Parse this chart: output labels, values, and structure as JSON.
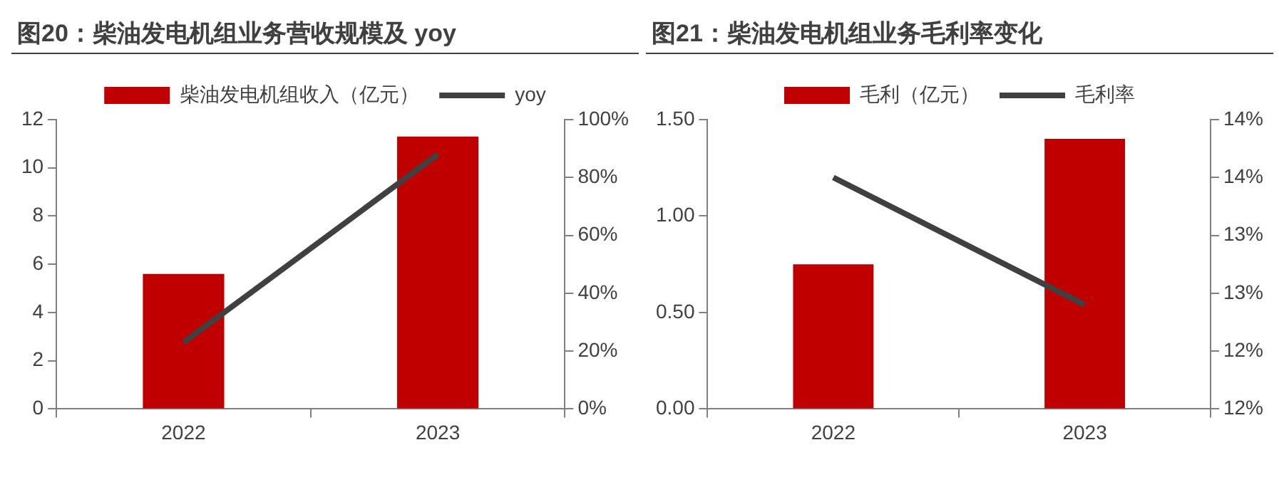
{
  "chart_data": [
    {
      "type": "bar",
      "title": "图20：柴油发电机组业务营收规模及 yoy",
      "categories": [
        "2022",
        "2023"
      ],
      "legend": "top",
      "grid": false,
      "series": [
        {
          "name": "柴油发电机组收入（亿元）",
          "color": "#c00000",
          "values": [
            5.6,
            11.3
          ]
        },
        {
          "name": "yoy",
          "type": "line",
          "axis": "y2",
          "color": "#404040",
          "values": [
            23,
            88
          ]
        }
      ],
      "ylim": [
        0,
        12
      ],
      "yticks": [
        0,
        2,
        4,
        6,
        8,
        10,
        12
      ],
      "y2lim": [
        0,
        100
      ],
      "y2ticks": [
        {
          "value": 0,
          "label": "0%"
        },
        {
          "value": 20,
          "label": "20%"
        },
        {
          "value": 40,
          "label": "40%"
        },
        {
          "value": 60,
          "label": "60%"
        },
        {
          "value": 80,
          "label": "80%"
        },
        {
          "value": 100,
          "label": "100%"
        }
      ]
    },
    {
      "type": "bar",
      "title": "图21：柴油发电机组业务毛利率变化",
      "categories": [
        "2022",
        "2023"
      ],
      "legend": "top",
      "grid": false,
      "series": [
        {
          "name": "毛利（亿元）",
          "color": "#c00000",
          "values": [
            0.75,
            1.4
          ]
        },
        {
          "name": "毛利率",
          "type": "line",
          "axis": "y2",
          "color": "#404040",
          "values": [
            13.5,
            12.4
          ]
        }
      ],
      "ylim": [
        0,
        1.5
      ],
      "yticks": [
        {
          "value": 0,
          "label": "0.00"
        },
        {
          "value": 0.5,
          "label": "0.50"
        },
        {
          "value": 1,
          "label": "1.00"
        },
        {
          "value": 1.5,
          "label": "1.50"
        }
      ],
      "y2lim": [
        11.5,
        14
      ],
      "y2ticks": [
        {
          "value": 11.5,
          "label": "12%"
        },
        {
          "value": 12,
          "label": "12%"
        },
        {
          "value": 12.5,
          "label": "13%"
        },
        {
          "value": 13,
          "label": "13%"
        },
        {
          "value": 13.5,
          "label": "14%"
        },
        {
          "value": 14,
          "label": "14%"
        }
      ]
    }
  ]
}
